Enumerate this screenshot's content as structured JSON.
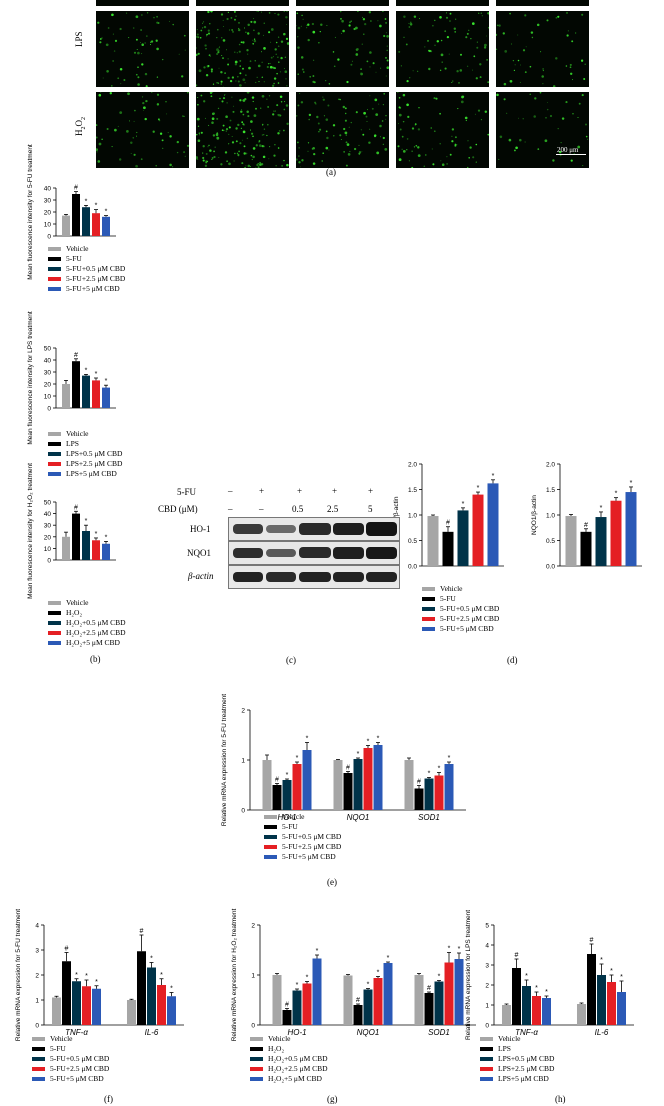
{
  "panel_a": {
    "rows": [
      "LPS",
      "H2O2"
    ],
    "scale_bar": "200 μm",
    "caption": "(a)"
  },
  "caps": {
    "b": "(b)",
    "c": "(c)",
    "d": "(d)",
    "e": "(e)",
    "f": "(f)",
    "g": "(g)",
    "h": "(h)"
  },
  "colors": {
    "vehicle": "#a6a6a6",
    "treat": "#000000",
    "cbd05": "#003349",
    "cbd25": "#e41f24",
    "cbd5": "#2b59b6"
  },
  "western": {
    "fu_label": "5-FU",
    "cbd_label": "CBD (μM)",
    "fu_signs": [
      "–",
      "+",
      "+",
      "+",
      "+"
    ],
    "cbd_doses": [
      "–",
      "–",
      "0.5",
      "2.5",
      "5"
    ],
    "proteins": [
      "HO-1",
      "NQO1",
      "β-actin"
    ]
  },
  "legends": {
    "fu": [
      "Vehicle",
      "5-FU",
      "5-FU+0.5 μM CBD",
      "5-FU+2.5 μM CBD",
      "5-FU+5 μM CBD"
    ],
    "lps": [
      "Vehicle",
      "LPS",
      "LPS+0.5 μM CBD",
      "LPS+2.5 μM CBD",
      "LPS+5 μM CBD"
    ],
    "h2o2": [
      "Vehicle",
      "H₂O₂",
      "H₂O₂+0.5 μM CBD",
      "H₂O₂+2.5 μM CBD",
      "H₂O₂+5 μM CBD"
    ]
  },
  "chart_data": [
    {
      "id": "b1",
      "type": "bar",
      "ylabel": "Mean fluorescence intensity for 5-FU treatment",
      "ylim": [
        0,
        40
      ],
      "yticks": [
        0,
        10,
        20,
        30,
        40
      ],
      "categories": [
        ""
      ],
      "series": [
        {
          "name": "Vehicle",
          "values": [
            17
          ]
        },
        {
          "name": "5-FU",
          "values": [
            35
          ]
        },
        {
          "name": "5-FU+0.5 μM CBD",
          "values": [
            24
          ]
        },
        {
          "name": "5-FU+2.5 μM CBD",
          "values": [
            19
          ]
        },
        {
          "name": "5-FU+5 μM CBD",
          "values": [
            16
          ]
        }
      ],
      "errors": [
        [
          1
        ],
        [
          2
        ],
        [
          1.5
        ],
        [
          3
        ],
        [
          1
        ]
      ],
      "marks": [
        [
          ""
        ],
        [
          "#"
        ],
        [
          "*"
        ],
        [
          "*"
        ],
        [
          "*"
        ]
      ]
    },
    {
      "id": "b2",
      "type": "bar",
      "ylabel": "Mean fluorescence intensity for LPS treatment",
      "ylim": [
        0,
        50
      ],
      "yticks": [
        0,
        10,
        20,
        30,
        40,
        50
      ],
      "categories": [
        ""
      ],
      "series": [
        {
          "name": "Vehicle",
          "values": [
            20
          ]
        },
        {
          "name": "LPS",
          "values": [
            39
          ]
        },
        {
          "name": "LPS+0.5 μM CBD",
          "values": [
            27
          ]
        },
        {
          "name": "LPS+2.5 μM CBD",
          "values": [
            23
          ]
        },
        {
          "name": "LPS+5 μM CBD",
          "values": [
            17
          ]
        }
      ],
      "errors": [
        [
          3
        ],
        [
          2
        ],
        [
          1
        ],
        [
          2
        ],
        [
          2
        ]
      ],
      "marks": [
        [
          ""
        ],
        [
          "#"
        ],
        [
          "*"
        ],
        [
          "*"
        ],
        [
          "*"
        ]
      ]
    },
    {
      "id": "b3",
      "type": "bar",
      "ylabel": "Mean fluorescence intensity for H₂O₂ treatment",
      "ylim": [
        0,
        50
      ],
      "yticks": [
        0,
        10,
        20,
        30,
        40,
        50
      ],
      "categories": [
        ""
      ],
      "series": [
        {
          "name": "Vehicle",
          "values": [
            20
          ]
        },
        {
          "name": "H₂O₂",
          "values": [
            40
          ]
        },
        {
          "name": "H₂O₂+0.5 μM CBD",
          "values": [
            25
          ]
        },
        {
          "name": "H₂O₂+2.5 μM CBD",
          "values": [
            17
          ]
        },
        {
          "name": "H₂O₂+5 μM CBD",
          "values": [
            14
          ]
        }
      ],
      "errors": [
        [
          4
        ],
        [
          2
        ],
        [
          5
        ],
        [
          2
        ],
        [
          2
        ]
      ],
      "marks": [
        [
          ""
        ],
        [
          "#"
        ],
        [
          "*"
        ],
        [
          "*"
        ],
        [
          "*"
        ]
      ]
    },
    {
      "id": "d1",
      "type": "bar",
      "ylabel": "HO-1/β-actin",
      "ylim": [
        0,
        2.0
      ],
      "yticks": [
        0,
        0.5,
        1.0,
        1.5,
        2.0
      ],
      "categories": [
        ""
      ],
      "series": [
        {
          "name": "Vehicle",
          "values": [
            0.98
          ]
        },
        {
          "name": "5-FU",
          "values": [
            0.67
          ]
        },
        {
          "name": "5-FU+0.5 μM CBD",
          "values": [
            1.09
          ]
        },
        {
          "name": "5-FU+2.5 μM CBD",
          "values": [
            1.4
          ]
        },
        {
          "name": "5-FU+5 μM CBD",
          "values": [
            1.62
          ]
        }
      ],
      "errors": [
        [
          0.02
        ],
        [
          0.1
        ],
        [
          0.05
        ],
        [
          0.05
        ],
        [
          0.07
        ]
      ],
      "marks": [
        [
          ""
        ],
        [
          "#"
        ],
        [
          "*"
        ],
        [
          "*"
        ],
        [
          "*"
        ]
      ]
    },
    {
      "id": "d2",
      "type": "bar",
      "ylabel": "NQO1/β-actin",
      "ylim": [
        0,
        2.0
      ],
      "yticks": [
        0,
        0.5,
        1.0,
        1.5,
        2.0
      ],
      "categories": [
        ""
      ],
      "series": [
        {
          "name": "Vehicle",
          "values": [
            0.98
          ]
        },
        {
          "name": "5-FU",
          "values": [
            0.67
          ]
        },
        {
          "name": "5-FU+0.5 μM CBD",
          "values": [
            0.96
          ]
        },
        {
          "name": "5-FU+2.5 μM CBD",
          "values": [
            1.28
          ]
        },
        {
          "name": "5-FU+5 μM CBD",
          "values": [
            1.45
          ]
        }
      ],
      "errors": [
        [
          0.03
        ],
        [
          0.06
        ],
        [
          0.1
        ],
        [
          0.06
        ],
        [
          0.1
        ]
      ],
      "marks": [
        [
          ""
        ],
        [
          "#"
        ],
        [
          "*"
        ],
        [
          "*"
        ],
        [
          "*"
        ]
      ]
    },
    {
      "id": "e",
      "type": "bar",
      "ylabel": "Relative mRNA expression for 5-FU treatment",
      "ylim": [
        0,
        2
      ],
      "yticks": [
        0,
        1,
        2
      ],
      "categories": [
        "HO-1",
        "NQO1",
        "SOD1"
      ],
      "series": [
        {
          "name": "Vehicle",
          "values": [
            1.0,
            1.0,
            1.0
          ]
        },
        {
          "name": "5-FU",
          "values": [
            0.5,
            0.74,
            0.43
          ]
        },
        {
          "name": "5-FU+0.5 μM CBD",
          "values": [
            0.6,
            1.02,
            0.63
          ]
        },
        {
          "name": "5-FU+2.5 μM CBD",
          "values": [
            0.92,
            1.24,
            0.69
          ]
        },
        {
          "name": "5-FU+5 μM CBD",
          "values": [
            1.2,
            1.3,
            0.92
          ]
        }
      ],
      "errors": [
        [
          0.1,
          0.01,
          0.04
        ],
        [
          0.03,
          0.03,
          0.06
        ],
        [
          0.02,
          0.02,
          0.02
        ],
        [
          0.04,
          0.05,
          0.06
        ],
        [
          0.15,
          0.05,
          0.04
        ]
      ],
      "marks": [
        [
          "",
          "",
          ""
        ],
        [
          "#",
          "#",
          "#"
        ],
        [
          "*",
          "*",
          "*"
        ],
        [
          "*",
          "*",
          "*"
        ],
        [
          "*",
          "*",
          "*"
        ]
      ]
    },
    {
      "id": "f",
      "type": "bar",
      "ylabel": "Relative mRNA expression for 5-FU treatment",
      "ylim": [
        0,
        4
      ],
      "yticks": [
        0,
        1,
        2,
        3,
        4
      ],
      "categories": [
        "TNF-α",
        "IL-6"
      ],
      "series": [
        {
          "name": "Vehicle",
          "values": [
            1.1,
            1.0
          ]
        },
        {
          "name": "5-FU",
          "values": [
            2.55,
            2.95
          ]
        },
        {
          "name": "5-FU+0.5 μM CBD",
          "values": [
            1.75,
            2.3
          ]
        },
        {
          "name": "5-FU+2.5 μM CBD",
          "values": [
            1.55,
            1.6
          ]
        },
        {
          "name": "5-FU+5 μM CBD",
          "values": [
            1.45,
            1.15
          ]
        }
      ],
      "errors": [
        [
          0.05,
          0.03
        ],
        [
          0.35,
          0.65
        ],
        [
          0.1,
          0.2
        ],
        [
          0.25,
          0.25
        ],
        [
          0.12,
          0.15
        ]
      ],
      "marks": [
        [
          "",
          ""
        ],
        [
          "#",
          "#"
        ],
        [
          "*",
          "*"
        ],
        [
          "*",
          "*"
        ],
        [
          "*",
          "*"
        ]
      ]
    },
    {
      "id": "g",
      "type": "bar",
      "ylabel": "Relative mRNA expression for H₂O₂ treatment",
      "ylim": [
        0,
        2
      ],
      "yticks": [
        0,
        1,
        2
      ],
      "categories": [
        "HO-1",
        "NQO1",
        "SOD1"
      ],
      "series": [
        {
          "name": "Vehicle",
          "values": [
            1.0,
            0.99,
            1.0
          ]
        },
        {
          "name": "H₂O₂",
          "values": [
            0.3,
            0.4,
            0.64
          ]
        },
        {
          "name": "H₂O₂+0.5 μM CBD",
          "values": [
            0.69,
            0.71,
            0.87
          ]
        },
        {
          "name": "H₂O₂+2.5 μM CBD",
          "values": [
            0.83,
            0.94,
            1.25
          ]
        },
        {
          "name": "H₂O₂+5 μM CBD",
          "values": [
            1.33,
            1.24,
            1.32
          ]
        }
      ],
      "errors": [
        [
          0.03,
          0.02,
          0.03
        ],
        [
          0.03,
          0.02,
          0.02
        ],
        [
          0.03,
          0.02,
          0.02
        ],
        [
          0.04,
          0.03,
          0.2
        ],
        [
          0.07,
          0.02,
          0.12
        ]
      ],
      "marks": [
        [
          "",
          "",
          ""
        ],
        [
          "#",
          "#",
          "#"
        ],
        [
          "*",
          "*",
          "*"
        ],
        [
          "*",
          "*",
          "*"
        ],
        [
          "*",
          "*",
          "*"
        ]
      ]
    },
    {
      "id": "h",
      "type": "bar",
      "ylabel": "Relative mRNA expression for LPS treatment",
      "ylim": [
        0,
        5
      ],
      "yticks": [
        0,
        1,
        2,
        3,
        4,
        5
      ],
      "categories": [
        "TNF-α",
        "IL-6"
      ],
      "series": [
        {
          "name": "Vehicle",
          "values": [
            1.0,
            1.05
          ]
        },
        {
          "name": "LPS",
          "values": [
            2.85,
            3.55
          ]
        },
        {
          "name": "LPS+0.5 μM CBD",
          "values": [
            1.95,
            2.5
          ]
        },
        {
          "name": "LPS+2.5 μM CBD",
          "values": [
            1.45,
            2.15
          ]
        },
        {
          "name": "LPS+5 μM CBD",
          "values": [
            1.35,
            1.65
          ]
        }
      ],
      "errors": [
        [
          0.05,
          0.05
        ],
        [
          0.45,
          0.5
        ],
        [
          0.3,
          0.55
        ],
        [
          0.2,
          0.35
        ],
        [
          0.1,
          0.55
        ]
      ],
      "marks": [
        [
          "",
          ""
        ],
        [
          "#",
          "#"
        ],
        [
          "*",
          "*"
        ],
        [
          "*",
          "*"
        ],
        [
          "*",
          "*"
        ]
      ]
    }
  ]
}
